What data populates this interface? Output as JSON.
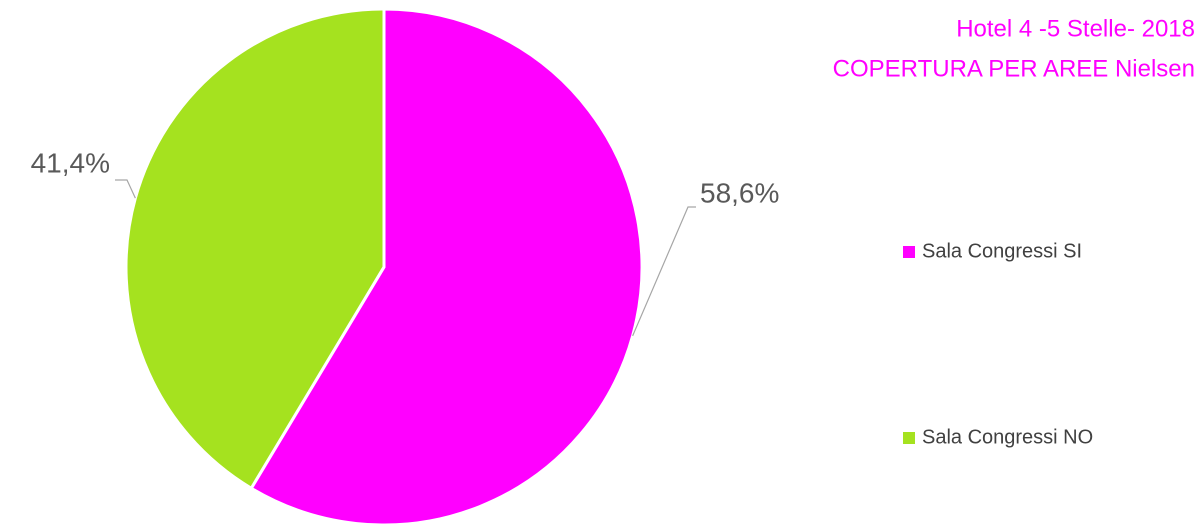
{
  "chart_data": {
    "type": "pie",
    "title": "Hotel 4 -5 Stelle- 2018",
    "subtitle": "COPERTURA PER AREE Nielsen",
    "categories": [
      "Sala Congressi SI",
      "Sala Congressi NO"
    ],
    "values": [
      58.6,
      41.4
    ],
    "value_labels": [
      "58,6%",
      "41,4%"
    ],
    "colors": [
      "#ff00ff",
      "#a5e21f"
    ],
    "legend": "right"
  }
}
